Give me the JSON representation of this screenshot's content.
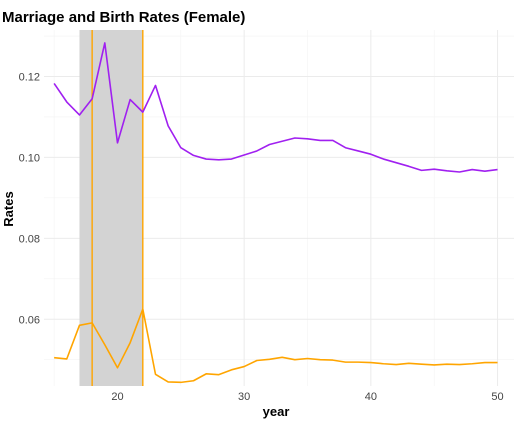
{
  "chart_data": {
    "type": "line",
    "title": "Marriage and Birth Rates (Female)",
    "xlabel": "year",
    "ylabel": "Rates",
    "xlim": [
      14.2,
      51.3
    ],
    "ylim": [
      0.0435,
      0.1315
    ],
    "x_ticks": [
      20,
      30,
      40,
      50
    ],
    "y_ticks": [
      0.06,
      0.08,
      0.1,
      0.12
    ],
    "y_tick_labels": [
      "0.06",
      "0.08",
      "0.10",
      "0.12"
    ],
    "grid": true,
    "legend": "none",
    "shaded_region": {
      "x_start": 17,
      "x_end": 22,
      "color": "#d3d3d3"
    },
    "vertical_lines": [
      18,
      22
    ],
    "vertical_line_color": "#ffa500",
    "x": [
      15,
      16,
      17,
      18,
      19,
      20,
      21,
      22,
      23,
      24,
      25,
      26,
      27,
      28,
      29,
      30,
      31,
      32,
      33,
      34,
      35,
      36,
      37,
      38,
      39,
      40,
      41,
      42,
      43,
      44,
      45,
      46,
      47,
      48,
      49,
      50
    ],
    "series": [
      {
        "color": "#a020f0",
        "values": [
          0.1183,
          0.1137,
          0.1105,
          0.1145,
          0.1283,
          0.1036,
          0.1143,
          0.1112,
          0.1178,
          0.1078,
          0.1024,
          0.1005,
          0.0996,
          0.0994,
          0.0996,
          0.1006,
          0.1016,
          0.1032,
          0.104,
          0.1048,
          0.1046,
          0.1042,
          0.1042,
          0.1024,
          0.1016,
          0.1008,
          0.0996,
          0.0987,
          0.0978,
          0.0968,
          0.0971,
          0.0967,
          0.0964,
          0.097,
          0.0966,
          0.097
        ]
      },
      {
        "color": "#ffa500",
        "values": [
          0.0505,
          0.0502,
          0.0585,
          0.0591,
          0.0537,
          0.048,
          0.0542,
          0.0625,
          0.0464,
          0.0445,
          0.0444,
          0.0448,
          0.0465,
          0.0463,
          0.0475,
          0.0483,
          0.0498,
          0.0501,
          0.0506,
          0.05,
          0.0503,
          0.05,
          0.0499,
          0.0494,
          0.0494,
          0.0493,
          0.049,
          0.0488,
          0.0491,
          0.0489,
          0.0487,
          0.0489,
          0.0488,
          0.049,
          0.0493,
          0.0493
        ]
      }
    ]
  }
}
